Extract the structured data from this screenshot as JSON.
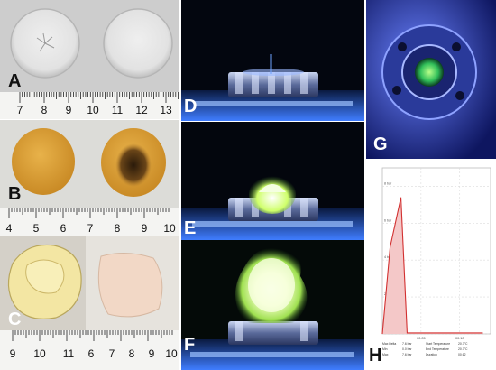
{
  "panel_labels": {
    "A": "A",
    "B": "B",
    "C": "C",
    "D": "D",
    "E": "E",
    "F": "F",
    "G": "G",
    "H": "H"
  },
  "ruler_a": [
    "7",
    "8",
    "9",
    "10",
    "11",
    "12",
    "13"
  ],
  "ruler_b": [
    "4",
    "5",
    "6",
    "7",
    "8",
    "9",
    "10"
  ],
  "ruler_c": [
    "9",
    "10",
    "11",
    "6",
    "7",
    "8",
    "9",
    "10"
  ],
  "colors": {
    "photo_bg": "#cfcfcf",
    "glow_blue": "#3f7dff",
    "flame_green": "#cfff6a",
    "pressure_line": "#d23030",
    "pressure_fill": "#f4c8c8"
  },
  "chart_data": {
    "type": "area",
    "x_ticks": [
      "00:00",
      "00:05",
      "00:10"
    ],
    "y_ticks": [
      "0 bar",
      "2 bar",
      "4 bar",
      "6 bar",
      "8 bar"
    ],
    "ylim": [
      0,
      9
    ],
    "series": [
      {
        "values": [
          [
            0,
            0
          ],
          [
            0.5,
            4.7
          ],
          [
            1.2,
            7.4
          ],
          [
            1.6,
            0.05
          ],
          [
            6.5,
            0.05
          ]
        ]
      }
    ],
    "stats": [
      {
        "label": "Max Delta",
        "value": "7.6 bar",
        "label2": "Start Temperature",
        "value2": "20.7°C"
      },
      {
        "label": "Min",
        "value": "0.0 bar",
        "label2": "End Temperature",
        "value2": "20.7°C"
      },
      {
        "label": "Max",
        "value": "7.6 bar",
        "label2": "Duration",
        "value2": "00:12"
      }
    ]
  }
}
